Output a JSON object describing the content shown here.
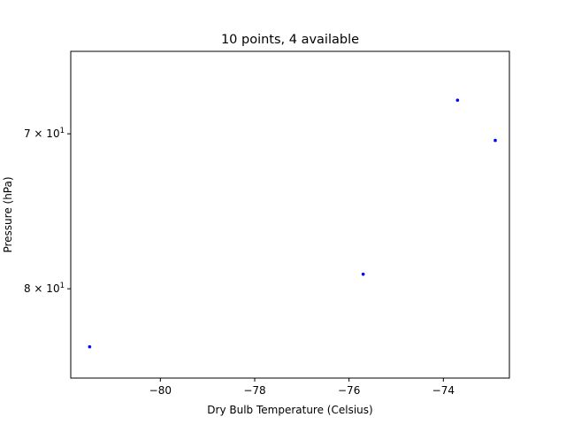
{
  "chart_data": {
    "type": "scatter",
    "title": "10 points, 4 available",
    "xlabel": "Dry Bulb Temperature (Celsius)",
    "ylabel": "Pressure (hPa)",
    "y_scale": "log",
    "y_inverted": true,
    "xlim": [
      -81.9,
      -72.6
    ],
    "ylim": [
      86.4,
      65.2
    ],
    "grid": false,
    "legend": "none",
    "x_ticks": [
      {
        "value": -80,
        "label": "−80"
      },
      {
        "value": -78,
        "label": "−78"
      },
      {
        "value": -76,
        "label": "−76"
      },
      {
        "value": -74,
        "label": "−74"
      }
    ],
    "y_ticks": [
      {
        "value": 70,
        "label_base": "7 × 10",
        "label_exp": "1"
      },
      {
        "value": 80,
        "label_base": "8 × 10",
        "label_exp": "1"
      }
    ],
    "series": [
      {
        "color": "#0000ff",
        "x": [
          -81.5,
          -75.7,
          -73.7,
          -72.9
        ],
        "y": [
          84.1,
          79.0,
          68.0,
          70.4
        ]
      }
    ]
  }
}
